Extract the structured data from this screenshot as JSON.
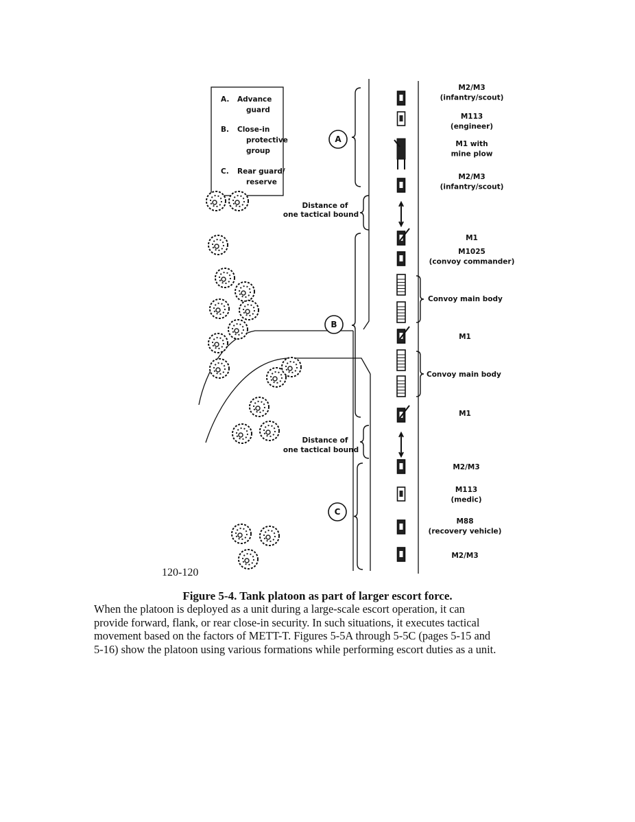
{
  "legend": [
    {
      "letter": "A.",
      "lines": [
        "Advance",
        "guard"
      ]
    },
    {
      "letter": "B.",
      "lines": [
        "Close-in",
        "protective",
        "group"
      ]
    },
    {
      "letter": "C.",
      "lines": [
        "Rear guard/",
        "reserve"
      ]
    }
  ],
  "groups": [
    "A",
    "B",
    "C"
  ],
  "distance_label": [
    "Distance of",
    "one tactical bound"
  ],
  "vehicle_labels": [
    [
      "M2/M3",
      "(infantry/scout)"
    ],
    [
      "M113",
      "(engineer)"
    ],
    [
      "M1 with",
      "mine plow"
    ],
    [
      "M2/M3",
      "(infantry/scout)"
    ],
    [
      "M1"
    ],
    [
      "M1025",
      "(convoy commander)"
    ],
    [
      "Convoy main body"
    ],
    [
      "M1"
    ],
    [
      "Convoy main body"
    ],
    [
      "M1"
    ],
    [
      "M2/M3"
    ],
    [
      "M113",
      "(medic)"
    ],
    [
      "M88",
      "(recovery vehicle)"
    ],
    [
      "M2/M3"
    ]
  ],
  "page_number": "120-120",
  "caption": "Figure 5-4. Tank platoon as part of larger escort force.",
  "paragraph": [
    "When the platoon is deployed as a unit during a large-scale escort operation, it can",
    "provide forward, flank, or rear close-in security. In such situations, it executes tactical",
    "movement based on the factors of METT-T. Figures 5-5A through 5-5C (pages 5-15 and",
    "5-16) show the platoon using various formations while performing escort duties as a unit."
  ]
}
